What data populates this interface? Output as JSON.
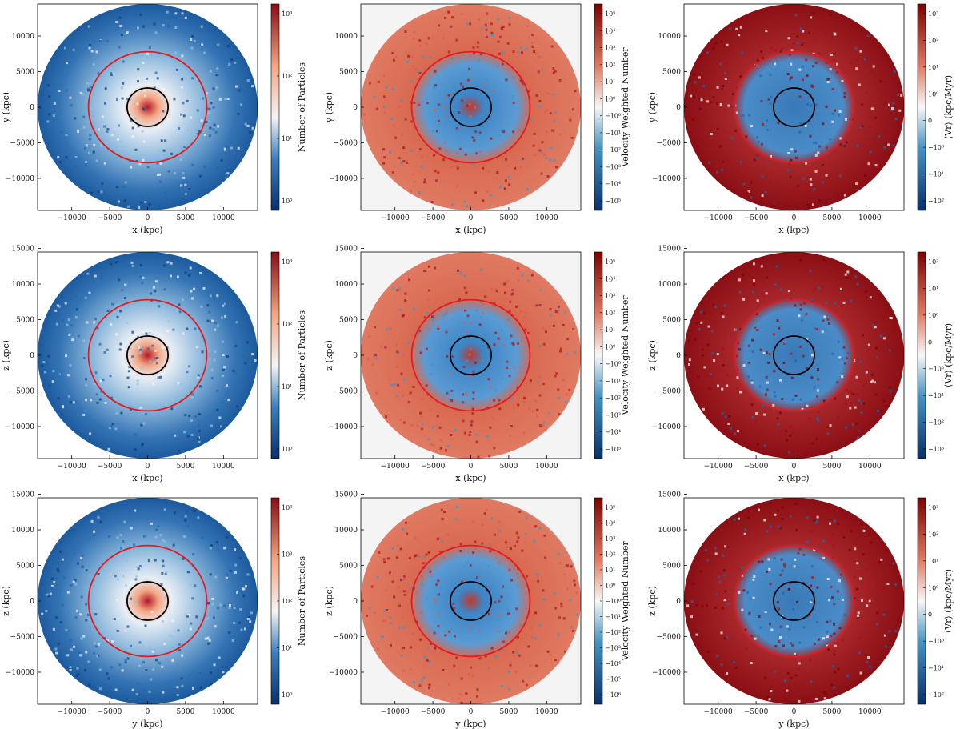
{
  "figure": {
    "colors": {
      "blue_dark": "#0b3d7a",
      "blue_mid": "#3b7fbf",
      "white": "#f7f7f7",
      "red_mid": "#d6604d",
      "red_dark": "#a50f15",
      "ring_red": "#e41a1c",
      "ring_black": "#000000"
    }
  },
  "chart_data": [
    {
      "type": "heatmap",
      "panel": "row1-col1",
      "xlabel": "x (kpc)",
      "ylabel": "y (kpc)",
      "xticks": [
        "−10000",
        "−5000",
        "0",
        "5000",
        "10000"
      ],
      "yticks": [
        "10000",
        "5000",
        "0",
        "−5000",
        "−10000"
      ],
      "colorbar_label": "Number of Particles",
      "colorbar_ticks": [
        "10³",
        "10²",
        "10¹",
        "10⁰"
      ],
      "style": "density",
      "circles": [
        {
          "radius": 7800,
          "color": "red"
        },
        {
          "radius": 2700,
          "color": "black"
        }
      ]
    },
    {
      "type": "heatmap",
      "panel": "row1-col2",
      "xlabel": "x (kpc)",
      "ylabel": "y (kpc)",
      "xticks": [
        "−10000",
        "−5000",
        "0",
        "5000",
        "10000"
      ],
      "yticks": [
        "10000",
        "5000",
        "0",
        "−5000",
        "−10000"
      ],
      "colorbar_label": "Velocity Weighted Number",
      "colorbar_ticks": [
        "10⁵",
        "10⁴",
        "10³",
        "10²",
        "10¹",
        "10⁰",
        "−10⁰",
        "−10¹",
        "−10²",
        "−10³",
        "−10⁴",
        "−10⁵"
      ],
      "style": "velocity",
      "circles": [
        {
          "radius": 7800,
          "color": "red"
        },
        {
          "radius": 2700,
          "color": "black"
        }
      ]
    },
    {
      "type": "heatmap",
      "panel": "row1-col3",
      "xlabel": "x (kpc)",
      "ylabel": "y (kpc)",
      "xticks": [
        "−10000",
        "−5000",
        "0",
        "5000",
        "10000"
      ],
      "yticks": [
        "10000",
        "5000",
        "0",
        "−5000",
        "−10000"
      ],
      "colorbar_label": "⟨Vr⟩ (kpc/Myr)",
      "colorbar_ticks": [
        "10³",
        "10²",
        "10¹",
        "10⁰",
        "0",
        "−10⁰",
        "−10¹",
        "−10²"
      ],
      "style": "mean",
      "circles": [
        {
          "radius": 7800,
          "color": "red"
        },
        {
          "radius": 2700,
          "color": "black"
        }
      ]
    },
    {
      "type": "heatmap",
      "panel": "row2-col1",
      "xlabel": "x (kpc)",
      "ylabel": "z (kpc)",
      "xticks": [
        "−10000",
        "−5000",
        "0",
        "5000",
        "10000"
      ],
      "yticks": [
        "15000",
        "10000",
        "5000",
        "0",
        "−5000",
        "−10000"
      ],
      "colorbar_label": "Number of Particles",
      "colorbar_ticks": [
        "10³",
        "10²",
        "10¹",
        "10⁰"
      ],
      "style": "density",
      "circles": [
        {
          "radius": 7800,
          "color": "red"
        },
        {
          "radius": 2700,
          "color": "black"
        }
      ]
    },
    {
      "type": "heatmap",
      "panel": "row2-col2",
      "xlabel": "x (kpc)",
      "ylabel": "z (kpc)",
      "xticks": [
        "−10000",
        "−5000",
        "0",
        "5000",
        "10000"
      ],
      "yticks": [
        "15000",
        "10000",
        "5000",
        "0",
        "−5000",
        "−10000"
      ],
      "colorbar_label": "Velocity Weighted Number",
      "colorbar_ticks": [
        "10⁵",
        "10⁴",
        "10³",
        "10²",
        "10¹",
        "10⁰",
        "−10⁰",
        "−10¹",
        "−10²",
        "−10³",
        "−10⁴",
        "−10⁵"
      ],
      "style": "velocity",
      "circles": [
        {
          "radius": 7800,
          "color": "red"
        },
        {
          "radius": 2700,
          "color": "black"
        }
      ]
    },
    {
      "type": "heatmap",
      "panel": "row2-col3",
      "xlabel": "x (kpc)",
      "ylabel": "z (kpc)",
      "xticks": [
        "−10000",
        "−5000",
        "0",
        "5000",
        "10000"
      ],
      "yticks": [
        "15000",
        "10000",
        "5000",
        "0",
        "−5000",
        "−10000"
      ],
      "colorbar_label": "⟨Vr⟩ (kpc/Myr)",
      "colorbar_ticks": [
        "10²",
        "10¹",
        "10⁰",
        "0",
        "−10⁰",
        "−10¹",
        "−10²",
        "−10³"
      ],
      "style": "mean",
      "circles": [
        {
          "radius": 7800,
          "color": "red"
        },
        {
          "radius": 2700,
          "color": "black"
        }
      ]
    },
    {
      "type": "heatmap",
      "panel": "row3-col1",
      "xlabel": "y (kpc)",
      "ylabel": "z (kpc)",
      "xticks": [
        "−10000",
        "−5000",
        "0",
        "5000",
        "10000"
      ],
      "yticks": [
        "15000",
        "10000",
        "5000",
        "0",
        "−5000",
        "−10000"
      ],
      "colorbar_label": "Number of Particles",
      "colorbar_ticks": [
        "10⁴",
        "10³",
        "10²",
        "10¹",
        "10⁰"
      ],
      "style": "density",
      "circles": [
        {
          "radius": 7800,
          "color": "red"
        },
        {
          "radius": 2700,
          "color": "black"
        }
      ]
    },
    {
      "type": "heatmap",
      "panel": "row3-col2",
      "xlabel": "y (kpc)",
      "ylabel": "z (kpc)",
      "xticks": [
        "−10000",
        "−5000",
        "0",
        "5000",
        "10000"
      ],
      "yticks": [
        "15000",
        "10000",
        "5000",
        "0",
        "−5000",
        "−10000"
      ],
      "colorbar_label": "Velocity Weighted Number",
      "colorbar_ticks": [
        "10⁵",
        "10⁴",
        "10³",
        "10²",
        "10¹",
        "10⁰",
        "−10⁰",
        "−10¹",
        "−10²",
        "−10³",
        "−10⁴",
        "−10⁵",
        "−10⁶"
      ],
      "style": "velocity",
      "circles": [
        {
          "radius": 7800,
          "color": "red"
        },
        {
          "radius": 2700,
          "color": "black"
        }
      ]
    },
    {
      "type": "heatmap",
      "panel": "row3-col3",
      "xlabel": "y (kpc)",
      "ylabel": "z (kpc)",
      "xticks": [
        "−10000",
        "−5000",
        "0",
        "5000",
        "10000"
      ],
      "yticks": [
        "15000",
        "10000",
        "5000",
        "0",
        "−5000",
        "−10000"
      ],
      "colorbar_label": "⟨Vr⟩ (kpc/Myr)",
      "colorbar_ticks": [
        "10³",
        "10²",
        "10¹",
        "10⁰",
        "0",
        "−10⁰",
        "−10¹",
        "−10²"
      ],
      "style": "mean",
      "circles": [
        {
          "radius": 7800,
          "color": "red"
        },
        {
          "radius": 2700,
          "color": "black"
        }
      ]
    }
  ]
}
